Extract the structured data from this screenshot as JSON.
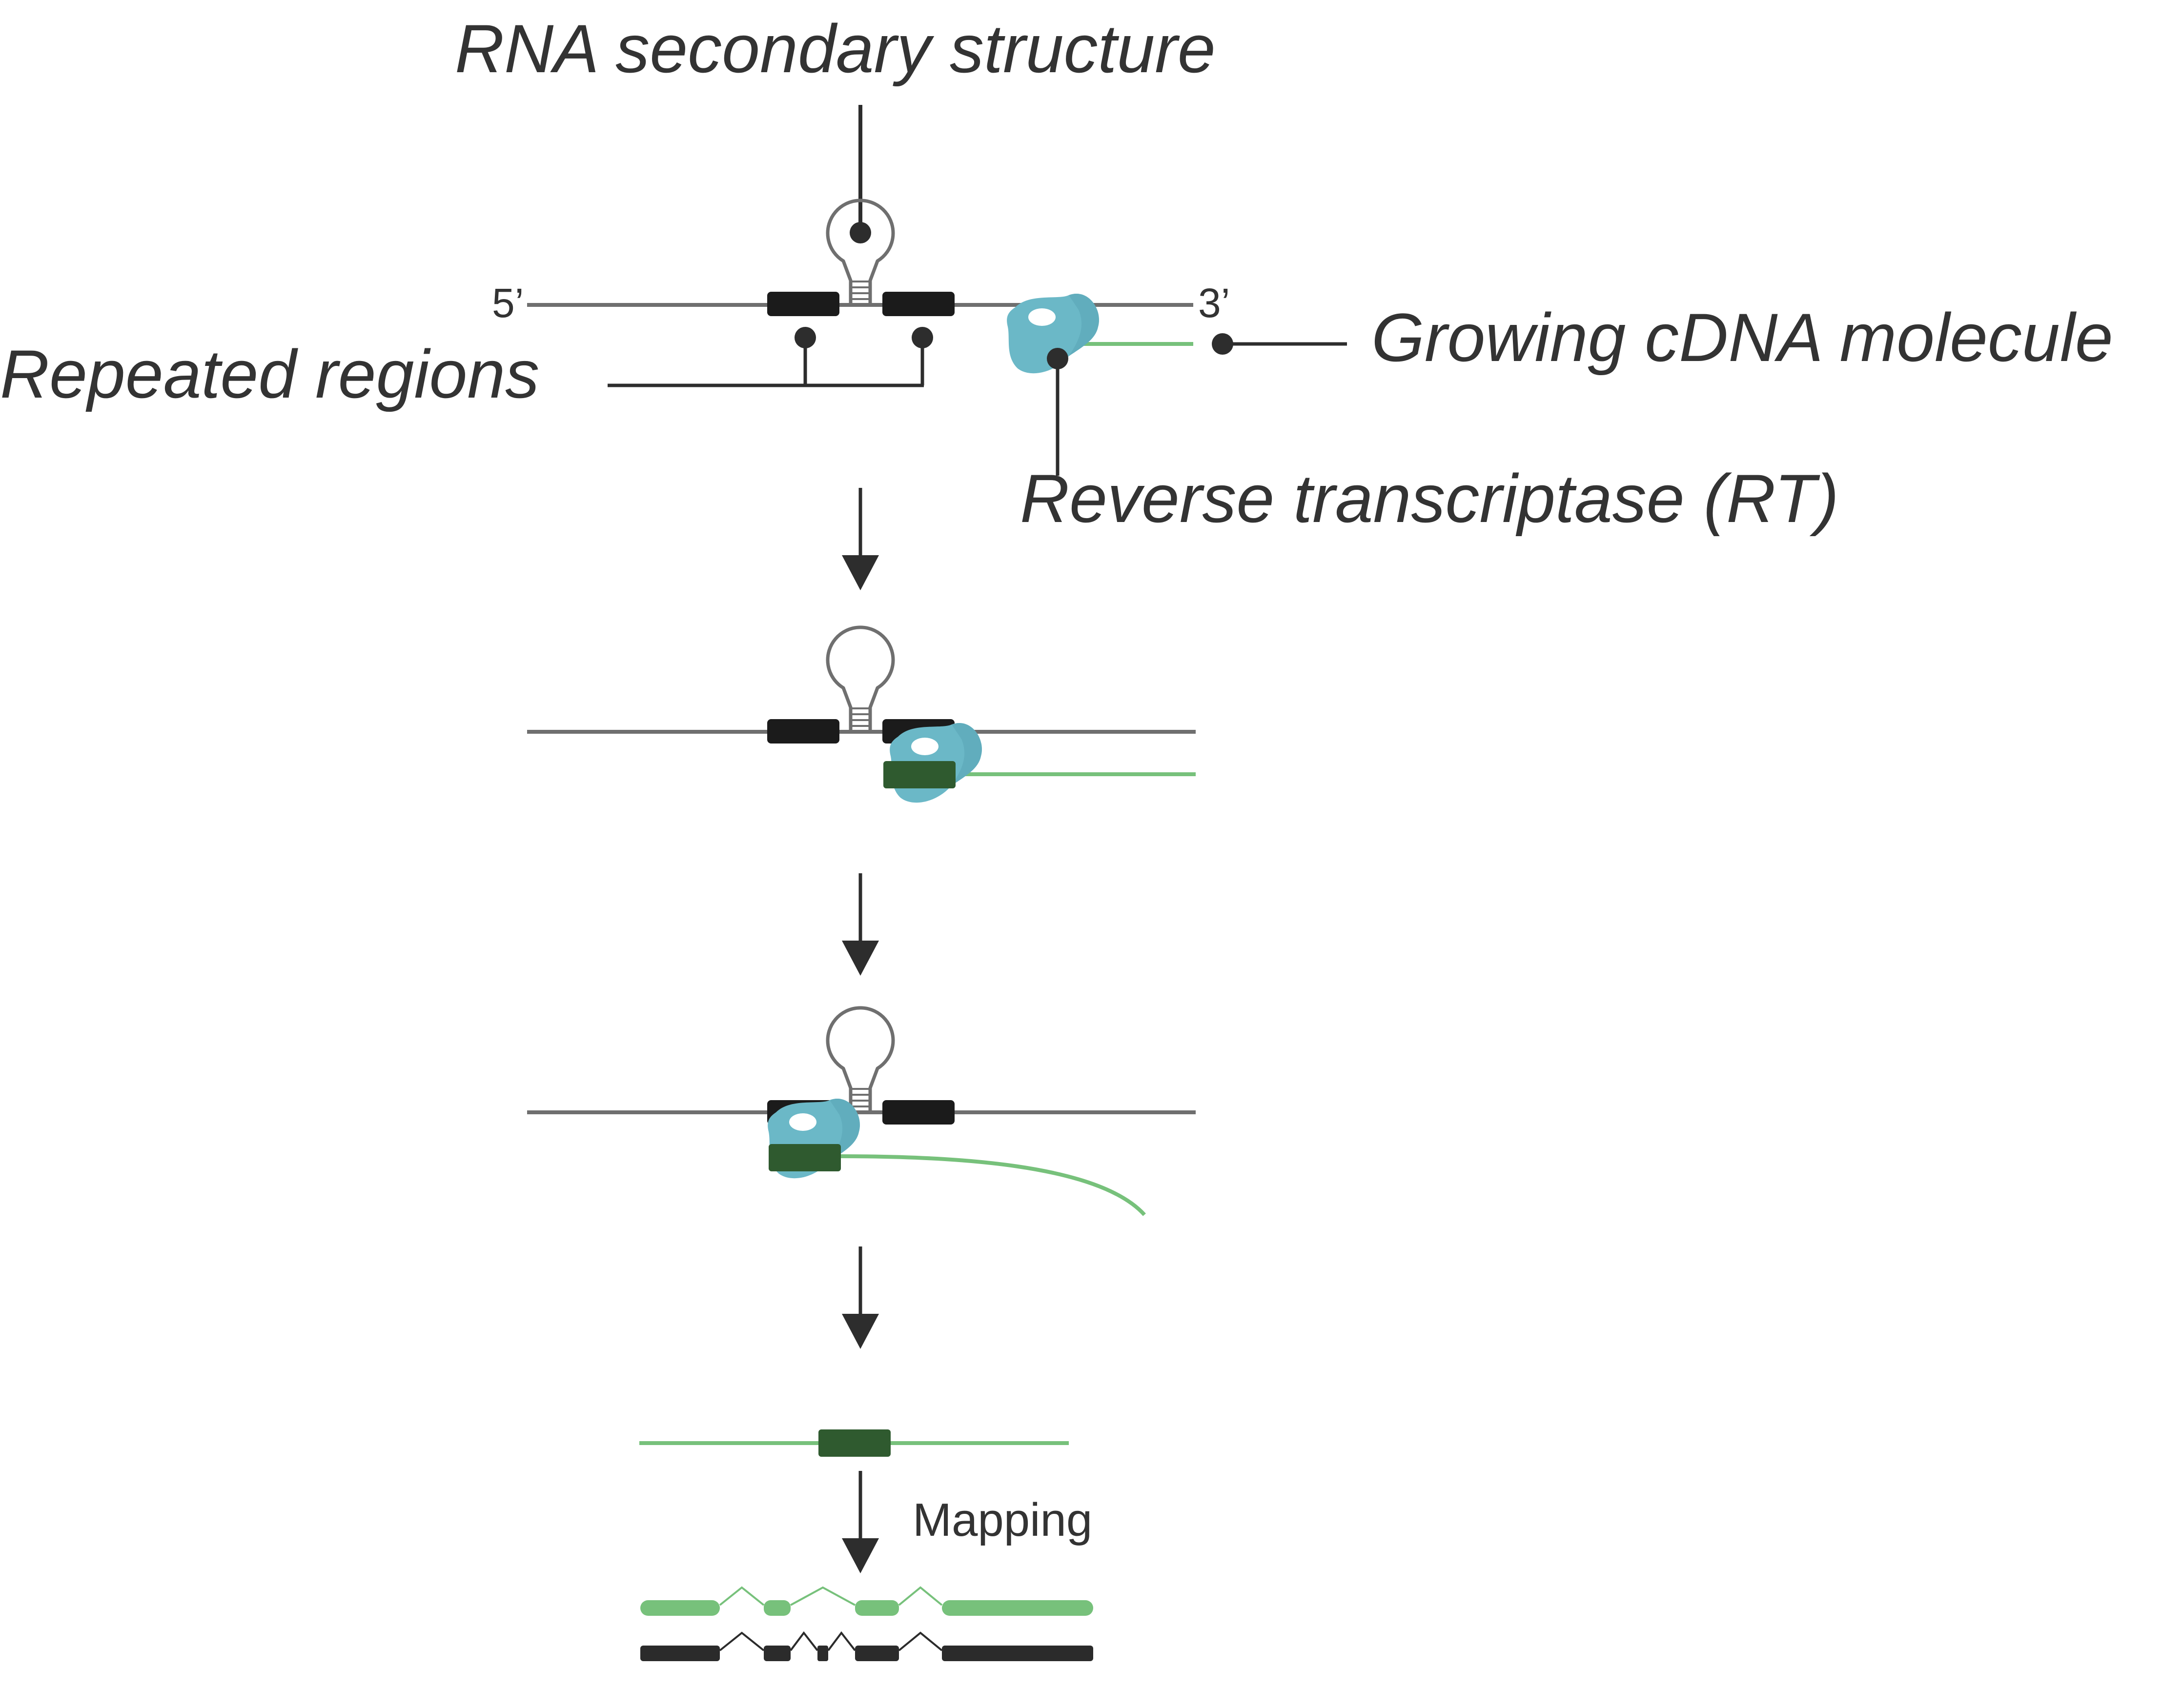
{
  "labels": {
    "rna_secondary_structure": "RNA secondary structure",
    "repeated_regions": "Repeated regions",
    "growing_cdna": "Growing cDNA molecule",
    "reverse_transcriptase": "Reverse transcriptase (RT)",
    "five_prime": "5’",
    "three_prime": "3’",
    "mapping": "Mapping"
  },
  "colors": {
    "rna_strand": "#6f6f6f",
    "repeat_block": "#1b1b1b",
    "cdna": "#77c17b",
    "cdna_repeat": "#2f5a2f",
    "rt_enzyme": "#6bb8c7",
    "rt_enzyme_dark": "#5aa5b6",
    "pointer": "#2d2d2d",
    "genome": "#2b2b2b"
  },
  "icons": [
    "hairpin-icon",
    "reverse-transcriptase-icon",
    "flow-arrow-icon"
  ]
}
